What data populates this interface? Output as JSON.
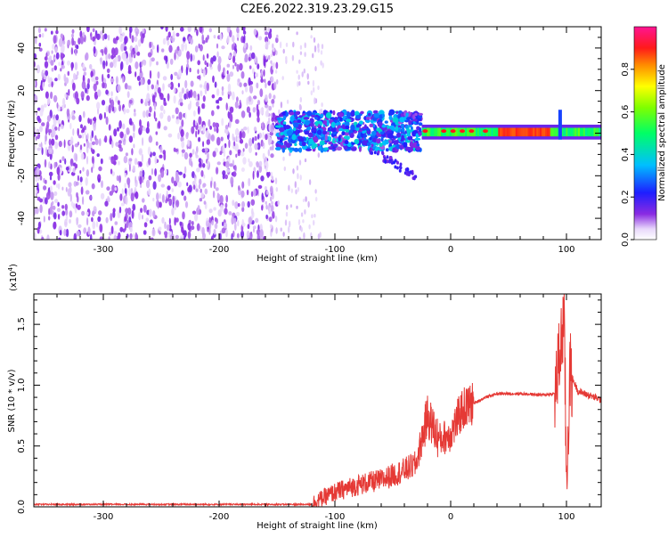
{
  "figure_title": "C2E6.2022.319.23.29.G15",
  "chart_data": [
    {
      "type": "heatmap",
      "xlabel": "Height of straight line (km)",
      "ylabel": "Frequency (Hz)",
      "xlim": [
        -360,
        130
      ],
      "ylim": [
        -50,
        50
      ],
      "xticks": [
        -300,
        -200,
        -100,
        0,
        100
      ],
      "yticks": [
        -40,
        -20,
        0,
        20,
        40
      ],
      "colorbar": {
        "label": "Normalized spectral amplitude",
        "range": [
          0.0,
          1.0
        ],
        "ticks": [
          "0.0",
          "0.2",
          "0.4",
          "0.6",
          "0.8"
        ],
        "colormap": "rainbow (white-violet-blue-cyan-green-yellow-orange-red-magenta)"
      },
      "regions": [
        {
          "x": [
            -360,
            -160
          ],
          "freq": [
            -50,
            50
          ],
          "amplitude": 0.1,
          "description": "scattered noise across full band"
        },
        {
          "x": [
            -160,
            -120
          ],
          "freq": [
            -50,
            50
          ],
          "amplitude": 0.05,
          "description": "fading noise"
        },
        {
          "x": [
            -150,
            -25
          ],
          "freq": [
            -10,
            12
          ],
          "amplitude": 0.35,
          "description": "cluster near 0 Hz"
        },
        {
          "x": [
            -25,
            130
          ],
          "freq": [
            -3,
            3
          ],
          "amplitude": 0.8,
          "description": "narrow band at ~1 Hz, peaks ~0.9 between 40 and 80 km"
        }
      ]
    },
    {
      "type": "line",
      "xlabel": "Height of straight line (km)",
      "ylabel": "SNR (10 * v/v)",
      "y_scale_label": "(x10",
      "y_scale_exp": "4",
      "y_scale_close": ")",
      "xlim": [
        -360,
        130
      ],
      "ylim": [
        0,
        1.75
      ],
      "xticks": [
        -300,
        -200,
        -100,
        0,
        100
      ],
      "yticks": [
        "0.0",
        "0.5",
        "1.0",
        "1.5"
      ],
      "series": [
        {
          "color": "#e53935",
          "x": [
            -360,
            -300,
            -200,
            -140,
            -120,
            -100,
            -80,
            -60,
            -40,
            -30,
            -20,
            -10,
            0,
            10,
            20,
            30,
            40,
            60,
            80,
            90,
            95,
            98,
            100,
            103,
            110,
            130
          ],
          "values": [
            0.02,
            0.02,
            0.02,
            0.02,
            0.03,
            0.12,
            0.18,
            0.22,
            0.3,
            0.35,
            0.75,
            0.55,
            0.6,
            0.8,
            0.85,
            0.9,
            0.93,
            0.93,
            0.92,
            0.93,
            1.3,
            1.6,
            0.2,
            1.1,
            0.95,
            0.88
          ]
        }
      ]
    }
  ]
}
